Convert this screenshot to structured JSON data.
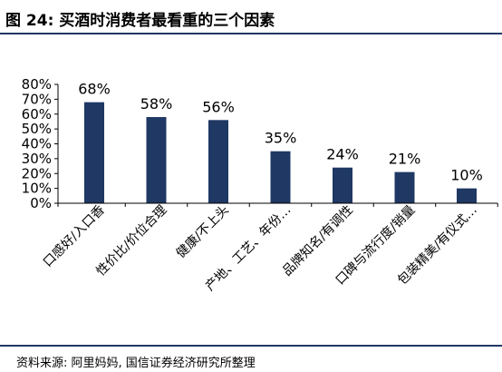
{
  "header": {
    "title": "图 24:  买酒时消费者最看重的三个因素"
  },
  "footer": {
    "source": "资料来源:  阿里妈妈, 国信证券经济研究所整理"
  },
  "colors": {
    "bar": "#1f3864",
    "rule": "#1f3864"
  },
  "chart_data": {
    "type": "bar",
    "categories": [
      "口感好/入口香",
      "性价比/价位合理",
      "健康/不上头",
      "产地、工艺、年份…",
      "品牌知名/有调性",
      "口碑与流行度/销量",
      "包装精美/有仪式…"
    ],
    "values": [
      68,
      58,
      56,
      35,
      24,
      21,
      10
    ],
    "data_labels": [
      "68%",
      "58%",
      "56%",
      "35%",
      "24%",
      "21%",
      "10%"
    ],
    "yticks": [
      "0%",
      "10%",
      "20%",
      "30%",
      "40%",
      "50%",
      "60%",
      "70%",
      "80%"
    ],
    "ylim": [
      0,
      80
    ],
    "grid": false,
    "legend": "none"
  }
}
